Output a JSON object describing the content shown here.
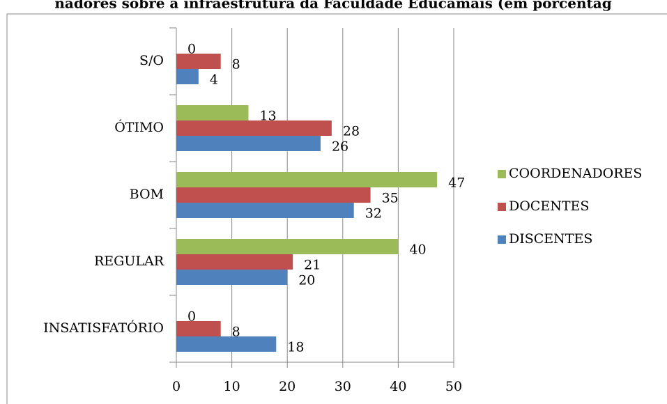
{
  "chart_data": {
    "type": "bar",
    "orientation": "horizontal",
    "title": "nadores sobre a infraestrutura da Faculdade Educamais (em porcentag",
    "categories": [
      "INSATISFATÓRIO",
      "REGULAR",
      "BOM",
      "ÓTIMO",
      "S/O"
    ],
    "series": [
      {
        "name": "DISCENTES",
        "color": "#4f81bd",
        "values": [
          18,
          20,
          32,
          26,
          4
        ]
      },
      {
        "name": "DOCENTES",
        "color": "#c0504d",
        "values": [
          8,
          21,
          35,
          28,
          8
        ]
      },
      {
        "name": "COORDENADORES",
        "color": "#9bbb59",
        "values": [
          0,
          40,
          47,
          13,
          0
        ]
      }
    ],
    "xlim": [
      0,
      50
    ],
    "xticks": [
      0,
      10,
      20,
      30,
      40,
      50
    ],
    "grid": true,
    "legend": "right"
  }
}
